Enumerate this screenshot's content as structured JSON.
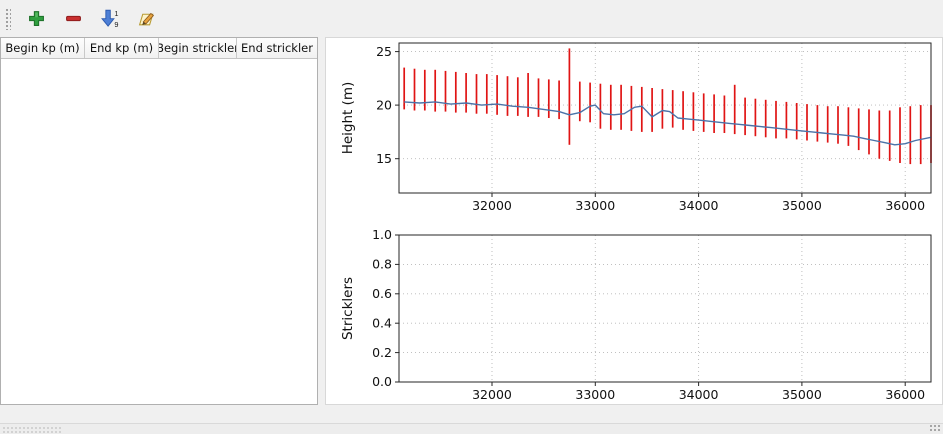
{
  "toolbar": {
    "add_color": "#2f9e3f",
    "remove_color": "#c92f2f",
    "sort_color": "#4d7fd6",
    "sort_digits": [
      "1",
      "9"
    ]
  },
  "table": {
    "headers": [
      "Begin kp (m)",
      "End kp (m)",
      "Begin strickler",
      "End strickler"
    ],
    "rows": []
  },
  "chart_data": [
    {
      "type": "line",
      "subtype": "line-with-vertical-errorbars",
      "title": "",
      "xlabel": "",
      "ylabel": "Height (m)",
      "xlim": [
        31100,
        36250
      ],
      "ylim": [
        11.8,
        25.8
      ],
      "grid": true,
      "xticks": [
        32000,
        33000,
        34000,
        35000,
        36000
      ],
      "xtick_labels": [
        "32000",
        "33000",
        "34000",
        "35000",
        "36000"
      ],
      "yticks": [
        15,
        20,
        25
      ],
      "ytick_labels": [
        "15",
        "20",
        "25"
      ],
      "bar_color": "#e01414",
      "line_color": "#4a72a8",
      "bars": {
        "x": [
          31150,
          31250,
          31350,
          31450,
          31550,
          31650,
          31750,
          31850,
          31950,
          32050,
          32150,
          32250,
          32350,
          32450,
          32550,
          32650,
          32750,
          32850,
          32950,
          33050,
          33150,
          33250,
          33350,
          33450,
          33550,
          33650,
          33750,
          33850,
          33950,
          34050,
          34150,
          34250,
          34350,
          34450,
          34550,
          34650,
          34750,
          34850,
          34950,
          35050,
          35150,
          35250,
          35350,
          35450,
          35550,
          35650,
          35750,
          35850,
          35950,
          36050,
          36150,
          36250
        ],
        "low": [
          19.6,
          19.5,
          19.5,
          19.4,
          19.4,
          19.3,
          19.3,
          19.2,
          19.2,
          19.1,
          19.0,
          19.0,
          18.9,
          18.9,
          18.8,
          18.7,
          16.3,
          18.5,
          18.4,
          17.8,
          17.7,
          17.7,
          17.6,
          17.5,
          17.5,
          17.8,
          17.9,
          17.7,
          17.6,
          17.5,
          17.4,
          17.4,
          17.3,
          17.2,
          17.1,
          17.0,
          16.9,
          16.9,
          16.8,
          16.7,
          16.6,
          16.5,
          16.4,
          16.2,
          15.8,
          15.4,
          15.0,
          14.8,
          14.6,
          14.5,
          14.5,
          14.6
        ],
        "high": [
          23.5,
          23.4,
          23.3,
          23.3,
          23.2,
          23.1,
          23.0,
          22.9,
          22.9,
          22.8,
          22.7,
          22.6,
          23.0,
          22.5,
          22.4,
          22.3,
          25.3,
          22.2,
          22.1,
          22.0,
          21.9,
          21.9,
          21.8,
          21.7,
          21.6,
          21.5,
          21.4,
          21.3,
          21.2,
          21.1,
          21.0,
          20.9,
          21.9,
          20.7,
          20.6,
          20.5,
          20.4,
          20.3,
          20.2,
          20.1,
          20.0,
          19.9,
          19.9,
          19.8,
          19.7,
          19.6,
          19.5,
          19.5,
          19.8,
          19.9,
          20.0,
          20.0
        ]
      },
      "line": {
        "x": [
          31150,
          31300,
          31450,
          31600,
          31750,
          31900,
          32050,
          32200,
          32350,
          32500,
          32650,
          32750,
          32850,
          32950,
          33000,
          33080,
          33180,
          33280,
          33380,
          33450,
          33550,
          33650,
          33720,
          33800,
          33900,
          34000,
          34100,
          34200,
          34300,
          34400,
          34500,
          34600,
          34700,
          34800,
          34900,
          35000,
          35100,
          35200,
          35300,
          35400,
          35500,
          35600,
          35700,
          35800,
          35900,
          36000,
          36100,
          36250
        ],
        "y": [
          20.3,
          20.2,
          20.3,
          20.1,
          20.2,
          20.0,
          20.1,
          19.9,
          19.8,
          19.6,
          19.4,
          19.1,
          19.3,
          19.9,
          20.0,
          19.2,
          19.1,
          19.2,
          19.8,
          19.9,
          18.9,
          19.5,
          19.4,
          18.8,
          18.7,
          18.6,
          18.5,
          18.4,
          18.3,
          18.2,
          18.1,
          18.0,
          17.9,
          17.8,
          17.7,
          17.6,
          17.5,
          17.4,
          17.3,
          17.2,
          17.1,
          16.9,
          16.7,
          16.5,
          16.3,
          16.4,
          16.7,
          17.0
        ]
      }
    },
    {
      "type": "line",
      "subtype": "empty-axes",
      "title": "",
      "xlabel": "",
      "ylabel": "Stricklers",
      "xlim": [
        31100,
        36250
      ],
      "ylim": [
        0,
        1
      ],
      "grid": true,
      "xticks": [
        32000,
        33000,
        34000,
        35000,
        36000
      ],
      "xtick_labels": [
        "32000",
        "33000",
        "34000",
        "35000",
        "36000"
      ],
      "yticks": [
        0,
        0.2,
        0.4,
        0.6,
        0.8,
        1.0
      ],
      "ytick_labels": [
        "0.0",
        "0.2",
        "0.4",
        "0.6",
        "0.8",
        "1.0"
      ]
    }
  ]
}
